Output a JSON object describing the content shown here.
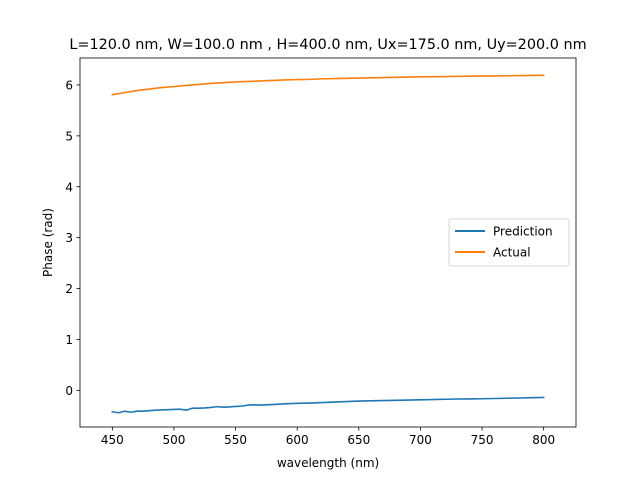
{
  "chart_data": {
    "type": "line",
    "title": "L=120.0 nm, W=100.0 nm , H=400.0 nm, Ux=175.0 nm, Uy=200.0 nm",
    "xlabel": "wavelength (nm)",
    "ylabel": "Phase (rad)",
    "xlim": [
      423.75,
      826.25
    ],
    "ylim": [
      -0.72,
      6.53
    ],
    "xticks": [
      450,
      500,
      550,
      600,
      650,
      700,
      750,
      800
    ],
    "yticks": [
      0,
      1,
      2,
      3,
      4,
      5,
      6
    ],
    "grid": false,
    "legend_position": "center-right",
    "series": [
      {
        "name": "Prediction",
        "color": "#1f77b4",
        "x": [
          450,
          455,
          460,
          465,
          470,
          475,
          480,
          485,
          490,
          495,
          500,
          505,
          510,
          515,
          520,
          525,
          530,
          535,
          540,
          545,
          550,
          555,
          560,
          565,
          570,
          575,
          580,
          590,
          600,
          610,
          620,
          630,
          640,
          650,
          660,
          670,
          680,
          690,
          700,
          710,
          720,
          730,
          740,
          750,
          760,
          770,
          780,
          790,
          800
        ],
        "values": [
          -0.42,
          -0.44,
          -0.41,
          -0.43,
          -0.41,
          -0.41,
          -0.4,
          -0.39,
          -0.385,
          -0.38,
          -0.375,
          -0.37,
          -0.39,
          -0.35,
          -0.35,
          -0.345,
          -0.335,
          -0.32,
          -0.33,
          -0.325,
          -0.315,
          -0.31,
          -0.29,
          -0.285,
          -0.29,
          -0.285,
          -0.28,
          -0.265,
          -0.255,
          -0.25,
          -0.24,
          -0.23,
          -0.22,
          -0.21,
          -0.205,
          -0.2,
          -0.195,
          -0.19,
          -0.185,
          -0.18,
          -0.175,
          -0.17,
          -0.168,
          -0.165,
          -0.16,
          -0.155,
          -0.15,
          -0.145,
          -0.14
        ]
      },
      {
        "name": "Actual",
        "color": "#ff7f0e",
        "x": [
          450,
          460,
          470,
          480,
          490,
          500,
          510,
          520,
          530,
          540,
          550,
          560,
          570,
          580,
          590,
          600,
          610,
          620,
          630,
          640,
          650,
          660,
          670,
          680,
          690,
          700,
          710,
          720,
          730,
          740,
          750,
          760,
          770,
          780,
          790,
          800
        ],
        "values": [
          5.81,
          5.85,
          5.89,
          5.92,
          5.95,
          5.97,
          5.99,
          6.01,
          6.03,
          6.045,
          6.06,
          6.07,
          6.08,
          6.09,
          6.1,
          6.105,
          6.11,
          6.12,
          6.125,
          6.13,
          6.135,
          6.14,
          6.145,
          6.15,
          6.155,
          6.16,
          6.163,
          6.166,
          6.169,
          6.172,
          6.175,
          6.178,
          6.181,
          6.184,
          6.187,
          6.19
        ]
      }
    ]
  }
}
